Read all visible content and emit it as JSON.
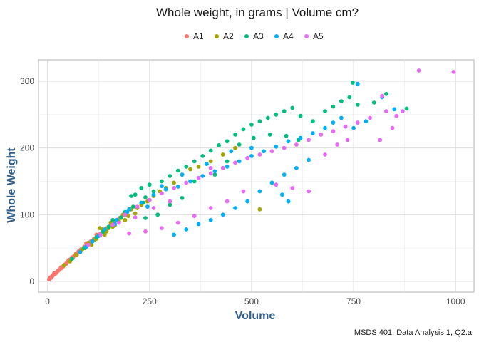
{
  "chart_data": {
    "type": "scatter",
    "title": "Whole weight, in grams | Volume cm?",
    "xlabel": "Volume",
    "ylabel": "Whole Weight",
    "caption": "MSDS 401: Data Analysis 1, Q2.a",
    "xlim": [
      -22,
      1045
    ],
    "ylim": [
      -16,
      332
    ],
    "x_ticks": [
      0,
      250,
      500,
      750,
      1000
    ],
    "y_ticks": [
      0,
      100,
      200,
      300
    ],
    "x_tick_labels": [
      "0",
      "250",
      "500",
      "750",
      "1000"
    ],
    "y_tick_labels": [
      "0",
      "100",
      "200",
      "300"
    ],
    "grid": true,
    "legend_position": "top",
    "axis_title_color": "#2f5f8a",
    "series": [
      {
        "name": "A1",
        "color": "#f8766d",
        "points": [
          [
            4,
            3
          ],
          [
            6,
            4
          ],
          [
            8,
            5
          ],
          [
            10,
            7
          ],
          [
            12,
            8
          ],
          [
            15,
            10
          ],
          [
            18,
            11
          ],
          [
            20,
            12
          ],
          [
            23,
            14
          ],
          [
            26,
            16
          ],
          [
            30,
            18
          ],
          [
            34,
            20
          ],
          [
            38,
            22
          ],
          [
            42,
            25
          ],
          [
            46,
            27
          ],
          [
            50,
            30
          ],
          [
            55,
            33
          ],
          [
            60,
            36
          ],
          [
            65,
            38
          ],
          [
            70,
            42
          ],
          [
            76,
            45
          ],
          [
            82,
            48
          ],
          [
            90,
            52
          ],
          [
            98,
            55
          ],
          [
            106,
            60
          ],
          [
            114,
            64
          ],
          [
            122,
            68
          ],
          [
            130,
            72
          ],
          [
            138,
            76
          ],
          [
            146,
            80
          ],
          [
            155,
            85
          ],
          [
            165,
            90
          ],
          [
            176,
            95
          ],
          [
            190,
            100
          ],
          [
            28,
            17
          ],
          [
            45,
            26
          ],
          [
            62,
            35
          ],
          [
            80,
            44
          ],
          [
            100,
            56
          ],
          [
            120,
            70
          ],
          [
            7,
            6
          ],
          [
            13,
            9
          ],
          [
            16,
            12
          ],
          [
            22,
            13
          ],
          [
            33,
            21
          ],
          [
            52,
            32
          ],
          [
            72,
            40
          ],
          [
            95,
            57
          ]
        ]
      },
      {
        "name": "A2",
        "color": "#a3a500",
        "points": [
          [
            40,
            24
          ],
          [
            55,
            30
          ],
          [
            70,
            40
          ],
          [
            85,
            48
          ],
          [
            100,
            58
          ],
          [
            115,
            62
          ],
          [
            128,
            80
          ],
          [
            135,
            78
          ],
          [
            145,
            75
          ],
          [
            155,
            88
          ],
          [
            165,
            84
          ],
          [
            180,
            95
          ],
          [
            190,
            92
          ],
          [
            205,
            108
          ],
          [
            215,
            102
          ],
          [
            230,
            115
          ],
          [
            245,
            120
          ],
          [
            260,
            128
          ],
          [
            275,
            135
          ],
          [
            290,
            140
          ],
          [
            310,
            148
          ],
          [
            330,
            160
          ],
          [
            350,
            168
          ],
          [
            370,
            172
          ],
          [
            400,
            180
          ],
          [
            430,
            190
          ],
          [
            460,
            200
          ],
          [
            520,
            108
          ],
          [
            140,
            70
          ],
          [
            160,
            82
          ],
          [
            175,
            90
          ],
          [
            198,
            98
          ],
          [
            120,
            64
          ],
          [
            108,
            55
          ],
          [
            92,
            50
          ],
          [
            150,
            80
          ],
          [
            185,
            100
          ],
          [
            220,
            110
          ]
        ]
      },
      {
        "name": "A3",
        "color": "#00bf7d",
        "points": [
          [
            60,
            34
          ],
          [
            90,
            50
          ],
          [
            120,
            66
          ],
          [
            150,
            82
          ],
          [
            180,
            96
          ],
          [
            210,
            112
          ],
          [
            240,
            126
          ],
          [
            260,
            135
          ],
          [
            280,
            150
          ],
          [
            300,
            158
          ],
          [
            320,
            166
          ],
          [
            340,
            172
          ],
          [
            360,
            180
          ],
          [
            380,
            188
          ],
          [
            400,
            196
          ],
          [
            420,
            204
          ],
          [
            440,
            210
          ],
          [
            460,
            220
          ],
          [
            480,
            228
          ],
          [
            500,
            235
          ],
          [
            520,
            240
          ],
          [
            540,
            245
          ],
          [
            560,
            250
          ],
          [
            580,
            255
          ],
          [
            600,
            260
          ],
          [
            620,
            248
          ],
          [
            650,
            240
          ],
          [
            680,
            255
          ],
          [
            700,
            262
          ],
          [
            720,
            270
          ],
          [
            740,
            276
          ],
          [
            748,
            298
          ],
          [
            760,
            265
          ],
          [
            800,
            268
          ],
          [
            830,
            281
          ],
          [
            880,
            259
          ],
          [
            615,
            212
          ],
          [
            585,
            218
          ],
          [
            545,
            220
          ],
          [
            505,
            215
          ],
          [
            470,
            205
          ],
          [
            440,
            180
          ],
          [
            410,
            160
          ],
          [
            360,
            150
          ],
          [
            330,
            125
          ],
          [
            300,
            115
          ],
          [
            270,
            100
          ],
          [
            240,
            95
          ],
          [
            215,
            130
          ],
          [
            205,
            128
          ],
          [
            230,
            140
          ],
          [
            250,
            145
          ],
          [
            235,
            118
          ],
          [
            190,
            104
          ],
          [
            160,
            92
          ],
          [
            135,
            74
          ]
        ]
      },
      {
        "name": "A4",
        "color": "#00b0f6",
        "points": [
          [
            80,
            44
          ],
          [
            110,
            60
          ],
          [
            140,
            78
          ],
          [
            170,
            92
          ],
          [
            200,
            108
          ],
          [
            230,
            118
          ],
          [
            260,
            130
          ],
          [
            290,
            138
          ],
          [
            320,
            142
          ],
          [
            350,
            150
          ],
          [
            380,
            158
          ],
          [
            410,
            165
          ],
          [
            440,
            172
          ],
          [
            470,
            180
          ],
          [
            500,
            188
          ],
          [
            530,
            195
          ],
          [
            560,
            202
          ],
          [
            590,
            210
          ],
          [
            620,
            215
          ],
          [
            650,
            222
          ],
          [
            680,
            230
          ],
          [
            700,
            238
          ],
          [
            720,
            245
          ],
          [
            750,
            230
          ],
          [
            760,
            296
          ],
          [
            780,
            240
          ],
          [
            820,
            276
          ],
          [
            850,
            258
          ],
          [
            640,
            182
          ],
          [
            610,
            170
          ],
          [
            580,
            160
          ],
          [
            550,
            148
          ],
          [
            520,
            135
          ],
          [
            490,
            120
          ],
          [
            460,
            110
          ],
          [
            430,
            100
          ],
          [
            400,
            92
          ],
          [
            370,
            86
          ],
          [
            340,
            78
          ],
          [
            310,
            70
          ],
          [
            575,
            130
          ],
          [
            590,
            120
          ],
          [
            500,
            200
          ],
          [
            450,
            195
          ],
          [
            390,
            176
          ],
          [
            330,
            160
          ],
          [
            280,
            143
          ],
          [
            245,
            112
          ],
          [
            195,
            104
          ],
          [
            165,
            86
          ],
          [
            125,
            68
          ],
          [
            95,
            52
          ]
        ]
      },
      {
        "name": "A5",
        "color": "#e76bf3",
        "points": [
          [
            100,
            55
          ],
          [
            130,
            70
          ],
          [
            160,
            85
          ],
          [
            190,
            100
          ],
          [
            220,
            112
          ],
          [
            250,
            122
          ],
          [
            280,
            132
          ],
          [
            310,
            140
          ],
          [
            340,
            148
          ],
          [
            370,
            155
          ],
          [
            400,
            162
          ],
          [
            430,
            170
          ],
          [
            460,
            178
          ],
          [
            490,
            185
          ],
          [
            520,
            190
          ],
          [
            550,
            195
          ],
          [
            580,
            200
          ],
          [
            610,
            205
          ],
          [
            640,
            212
          ],
          [
            670,
            220
          ],
          [
            700,
            225
          ],
          [
            730,
            232
          ],
          [
            760,
            238
          ],
          [
            790,
            245
          ],
          [
            815,
            212
          ],
          [
            830,
            255
          ],
          [
            845,
            230
          ],
          [
            855,
            248
          ],
          [
            870,
            255
          ],
          [
            910,
            316
          ],
          [
            995,
            314
          ],
          [
            820,
            278
          ],
          [
            560,
            145
          ],
          [
            600,
            140
          ],
          [
            640,
            135
          ],
          [
            480,
            135
          ],
          [
            440,
            120
          ],
          [
            400,
            110
          ],
          [
            360,
            98
          ],
          [
            320,
            88
          ],
          [
            280,
            80
          ],
          [
            240,
            75
          ],
          [
            200,
            72
          ],
          [
            680,
            190
          ],
          [
            710,
            205
          ],
          [
            735,
            212
          ],
          [
            400,
            170
          ],
          [
            300,
            120
          ],
          [
            260,
            110
          ],
          [
            215,
            96
          ],
          [
            175,
            88
          ]
        ]
      }
    ]
  }
}
